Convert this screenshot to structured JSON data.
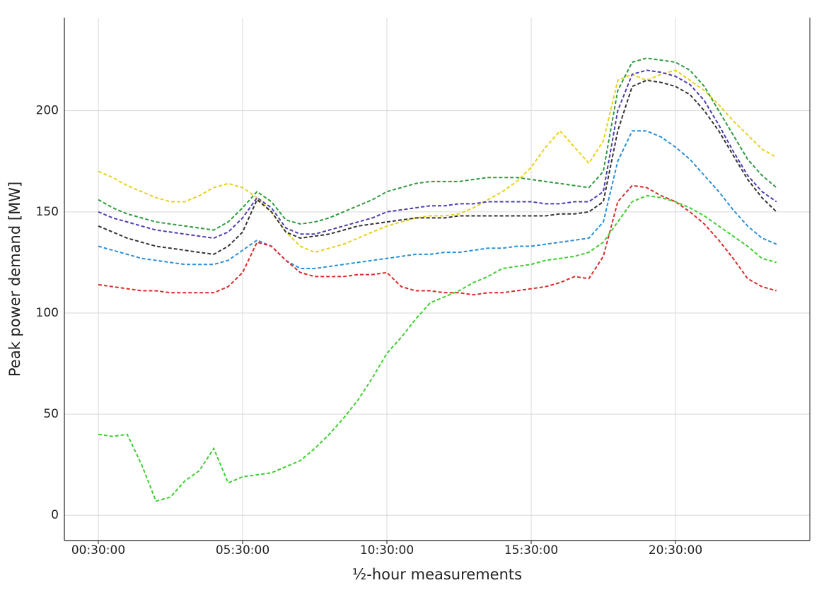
{
  "chart_data": {
    "type": "line",
    "x_label": "½-hour measurements",
    "y_label": "Peak power demand [MW]",
    "categories": [
      "00:30:00",
      null,
      null,
      null,
      null,
      null,
      null,
      null,
      null,
      null,
      "05:30:00",
      null,
      null,
      null,
      null,
      null,
      null,
      null,
      null,
      null,
      "10:30:00",
      null,
      null,
      null,
      null,
      null,
      null,
      null,
      null,
      null,
      "15:30:00",
      null,
      null,
      null,
      null,
      null,
      null,
      null,
      null,
      null,
      "20:30:00",
      null,
      null,
      null,
      null,
      null,
      null,
      null
    ],
    "ylim": [
      -12.5,
      246
    ],
    "yticks": [
      0,
      50,
      100,
      150,
      200
    ],
    "grid": true,
    "linestyle": "dashed",
    "series": [
      {
        "color": "#e6d21a",
        "values": [
          170,
          167,
          163,
          160,
          157,
          155,
          155,
          158,
          162,
          164,
          162,
          157,
          150,
          140,
          133,
          130,
          132,
          134,
          137,
          140,
          143,
          145,
          147,
          148,
          148,
          149,
          152,
          156,
          160,
          165,
          172,
          182,
          190,
          182,
          174,
          185,
          215,
          218,
          215,
          218,
          220,
          215,
          210,
          203,
          195,
          188,
          181,
          177
        ]
      },
      {
        "color": "#2e9a3e",
        "values": [
          156,
          152,
          149,
          147,
          145,
          144,
          143,
          142,
          141,
          145,
          152,
          160,
          155,
          146,
          144,
          145,
          147,
          150,
          153,
          156,
          160,
          162,
          164,
          165,
          165,
          165,
          166,
          167,
          167,
          167,
          166,
          165,
          164,
          163,
          162,
          170,
          210,
          224,
          226,
          225,
          224,
          220,
          212,
          200,
          188,
          176,
          168,
          162
        ]
      },
      {
        "color": "#4a3fb0",
        "values": [
          150,
          147,
          145,
          143,
          141,
          140,
          139,
          138,
          137,
          140,
          147,
          157,
          152,
          142,
          139,
          139,
          141,
          143,
          145,
          147,
          150,
          151,
          152,
          153,
          153,
          154,
          154,
          155,
          155,
          155,
          155,
          154,
          154,
          155,
          155,
          160,
          200,
          218,
          220,
          219,
          217,
          213,
          205,
          193,
          180,
          168,
          160,
          155
        ]
      },
      {
        "color": "#333333",
        "values": [
          143,
          140,
          137,
          135,
          133,
          132,
          131,
          130,
          129,
          133,
          140,
          156,
          150,
          140,
          137,
          138,
          139,
          141,
          143,
          144,
          145,
          146,
          147,
          147,
          147,
          148,
          148,
          148,
          148,
          148,
          148,
          148,
          149,
          149,
          150,
          155,
          190,
          212,
          215,
          214,
          212,
          208,
          200,
          190,
          178,
          166,
          157,
          150
        ]
      },
      {
        "color": "#2a8fd6",
        "values": [
          133,
          131,
          129,
          127,
          126,
          125,
          124,
          124,
          124,
          126,
          131,
          136,
          133,
          126,
          122,
          122,
          123,
          124,
          125,
          126,
          127,
          128,
          129,
          129,
          130,
          130,
          131,
          132,
          132,
          133,
          133,
          134,
          135,
          136,
          137,
          145,
          175,
          190,
          190,
          187,
          182,
          176,
          168,
          160,
          151,
          143,
          137,
          134
        ]
      },
      {
        "color": "#d92b2b",
        "values": [
          114,
          113,
          112,
          111,
          111,
          110,
          110,
          110,
          110,
          113,
          120,
          135,
          133,
          126,
          120,
          118,
          118,
          118,
          119,
          119,
          120,
          113,
          111,
          111,
          110,
          110,
          109,
          110,
          110,
          111,
          112,
          113,
          115,
          118,
          117,
          128,
          155,
          163,
          162,
          158,
          155,
          150,
          144,
          136,
          127,
          117,
          113,
          111
        ]
      },
      {
        "color": "#3ccf2e",
        "values": [
          40,
          39,
          40,
          25,
          7,
          9,
          17,
          22,
          33,
          16,
          19,
          20,
          21,
          24,
          27,
          33,
          40,
          48,
          57,
          68,
          80,
          88,
          97,
          105,
          108,
          111,
          115,
          118,
          122,
          123,
          124,
          126,
          127,
          128,
          130,
          135,
          145,
          155,
          158,
          157,
          155,
          152,
          148,
          143,
          138,
          133,
          127,
          125
        ]
      }
    ]
  }
}
